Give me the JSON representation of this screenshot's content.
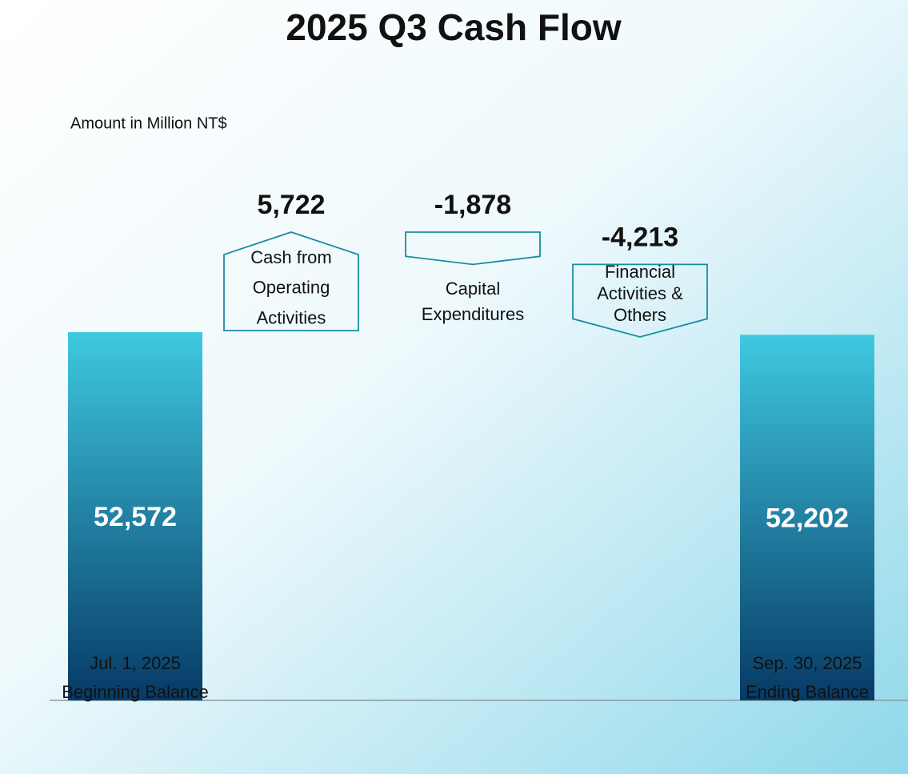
{
  "chart_data": {
    "type": "waterfall",
    "title": "2025 Q3 Cash Flow",
    "subtitle": "Amount in Million NT$",
    "categories": [
      [
        "Jul. 1, 2025",
        "Beginning Balance"
      ],
      [
        "Cash from",
        "Operating",
        "Activities"
      ],
      [
        "Capital",
        "Expenditures"
      ],
      [
        "Financial",
        "Activities &",
        "Others"
      ],
      [
        "Sep. 30, 2025",
        "Ending Balance"
      ]
    ],
    "values": [
      52572,
      5722,
      -1878,
      -4213,
      52202
    ],
    "value_labels": [
      "52,572",
      "5,722",
      "-1,878",
      "-4,213",
      "52,202"
    ],
    "color": "#1a8ca3",
    "bar_colors": [
      "#3fc9e0",
      "#063a66"
    ]
  }
}
